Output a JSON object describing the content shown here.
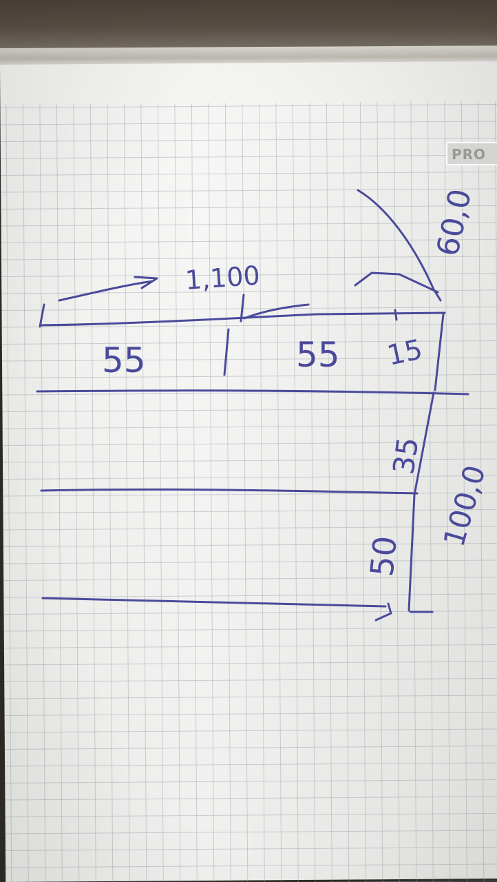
{
  "brand_label": "PRO",
  "sketch": {
    "top_span": "1,100",
    "segment_left": "55",
    "segment_right": "55",
    "segment_small": "15",
    "depth_value": "60,0",
    "middle_value": "35",
    "lower_value": "50",
    "height_value": "100,0"
  },
  "colors": {
    "ink": "#4a4a9c",
    "paper": "#efefec",
    "grid": "#96a0aa"
  }
}
